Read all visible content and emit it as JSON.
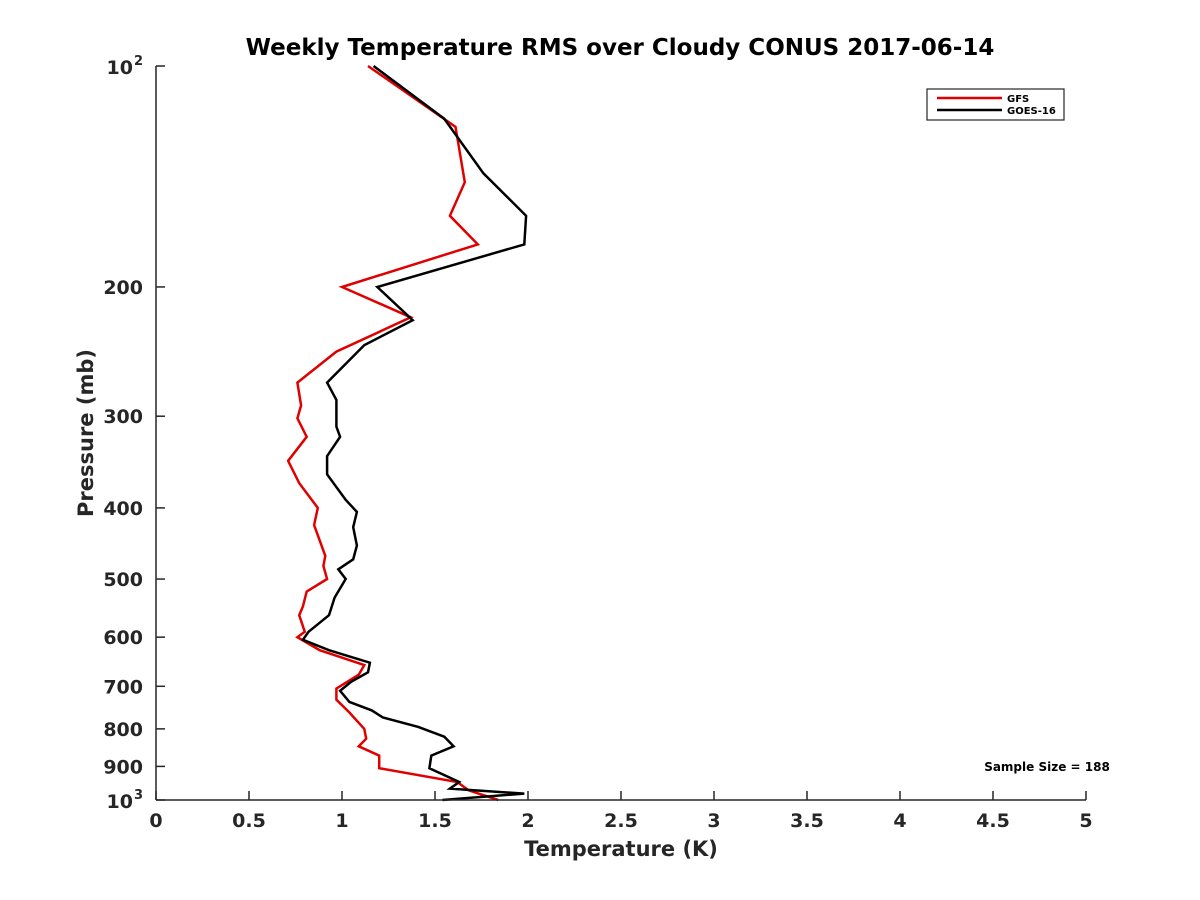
{
  "chart_data": {
    "type": "line",
    "title": "Weekly Temperature RMS over Cloudy CONUS 2017-06-14",
    "xlabel": "Temperature (K)",
    "ylabel": "Pressure (mb)",
    "xlim": [
      0,
      5
    ],
    "ylim": [
      100,
      1000
    ],
    "y_scale": "log",
    "y_reversed": true,
    "grid": false,
    "legend_position": "top-right",
    "x_ticks": [
      0,
      0.5,
      1,
      1.5,
      2,
      2.5,
      3,
      3.5,
      4,
      4.5,
      5
    ],
    "x_tick_labels": [
      "0",
      "0.5",
      "1",
      "1.5",
      "2",
      "2.5",
      "3",
      "3.5",
      "4",
      "4.5",
      "5"
    ],
    "y_ticks": [
      {
        "value": 100,
        "label": "10",
        "sup": "2"
      },
      {
        "value": 200,
        "label": "200",
        "sup": ""
      },
      {
        "value": 300,
        "label": "300",
        "sup": ""
      },
      {
        "value": 400,
        "label": "400",
        "sup": ""
      },
      {
        "value": 500,
        "label": "500",
        "sup": ""
      },
      {
        "value": 600,
        "label": "600",
        "sup": ""
      },
      {
        "value": 700,
        "label": "700",
        "sup": ""
      },
      {
        "value": 800,
        "label": "800",
        "sup": ""
      },
      {
        "value": 900,
        "label": "900",
        "sup": ""
      },
      {
        "value": 1000,
        "label": "10",
        "sup": "3"
      }
    ],
    "series": [
      {
        "name": "GFS",
        "color": "#e00000",
        "points": [
          {
            "x": 1.14,
            "y": 100
          },
          {
            "x": 1.61,
            "y": 121
          },
          {
            "x": 1.66,
            "y": 144
          },
          {
            "x": 1.58,
            "y": 160
          },
          {
            "x": 1.73,
            "y": 175
          },
          {
            "x": 1.0,
            "y": 200
          },
          {
            "x": 1.37,
            "y": 220
          },
          {
            "x": 0.97,
            "y": 245
          },
          {
            "x": 0.76,
            "y": 270
          },
          {
            "x": 0.78,
            "y": 290
          },
          {
            "x": 0.76,
            "y": 302
          },
          {
            "x": 0.81,
            "y": 320
          },
          {
            "x": 0.71,
            "y": 345
          },
          {
            "x": 0.77,
            "y": 370
          },
          {
            "x": 0.87,
            "y": 400
          },
          {
            "x": 0.85,
            "y": 422
          },
          {
            "x": 0.91,
            "y": 465
          },
          {
            "x": 0.9,
            "y": 480
          },
          {
            "x": 0.92,
            "y": 500
          },
          {
            "x": 0.81,
            "y": 520
          },
          {
            "x": 0.79,
            "y": 545
          },
          {
            "x": 0.77,
            "y": 560
          },
          {
            "x": 0.8,
            "y": 590
          },
          {
            "x": 0.76,
            "y": 600
          },
          {
            "x": 0.88,
            "y": 625
          },
          {
            "x": 1.12,
            "y": 655
          },
          {
            "x": 1.09,
            "y": 675
          },
          {
            "x": 0.97,
            "y": 705
          },
          {
            "x": 0.97,
            "y": 730
          },
          {
            "x": 1.04,
            "y": 760
          },
          {
            "x": 1.12,
            "y": 800
          },
          {
            "x": 1.13,
            "y": 825
          },
          {
            "x": 1.09,
            "y": 845
          },
          {
            "x": 1.2,
            "y": 870
          },
          {
            "x": 1.2,
            "y": 905
          },
          {
            "x": 1.62,
            "y": 945
          },
          {
            "x": 1.68,
            "y": 970
          },
          {
            "x": 1.84,
            "y": 1000
          }
        ]
      },
      {
        "name": "GOES-16",
        "color": "#000000",
        "points": [
          {
            "x": 1.17,
            "y": 100
          },
          {
            "x": 1.55,
            "y": 118
          },
          {
            "x": 1.76,
            "y": 140
          },
          {
            "x": 1.99,
            "y": 160
          },
          {
            "x": 1.98,
            "y": 175
          },
          {
            "x": 1.19,
            "y": 200
          },
          {
            "x": 1.38,
            "y": 222
          },
          {
            "x": 1.12,
            "y": 240
          },
          {
            "x": 0.92,
            "y": 270
          },
          {
            "x": 0.97,
            "y": 285
          },
          {
            "x": 0.97,
            "y": 310
          },
          {
            "x": 0.99,
            "y": 320
          },
          {
            "x": 0.92,
            "y": 340
          },
          {
            "x": 0.92,
            "y": 360
          },
          {
            "x": 1.02,
            "y": 390
          },
          {
            "x": 1.08,
            "y": 405
          },
          {
            "x": 1.06,
            "y": 425
          },
          {
            "x": 1.08,
            "y": 450
          },
          {
            "x": 1.06,
            "y": 470
          },
          {
            "x": 0.98,
            "y": 485
          },
          {
            "x": 1.02,
            "y": 500
          },
          {
            "x": 0.96,
            "y": 530
          },
          {
            "x": 0.93,
            "y": 560
          },
          {
            "x": 0.82,
            "y": 590
          },
          {
            "x": 0.79,
            "y": 605
          },
          {
            "x": 0.93,
            "y": 625
          },
          {
            "x": 1.15,
            "y": 650
          },
          {
            "x": 1.14,
            "y": 670
          },
          {
            "x": 1.05,
            "y": 690
          },
          {
            "x": 0.99,
            "y": 710
          },
          {
            "x": 1.04,
            "y": 735
          },
          {
            "x": 1.16,
            "y": 755
          },
          {
            "x": 1.22,
            "y": 772
          },
          {
            "x": 1.41,
            "y": 795
          },
          {
            "x": 1.55,
            "y": 820
          },
          {
            "x": 1.6,
            "y": 845
          },
          {
            "x": 1.48,
            "y": 870
          },
          {
            "x": 1.47,
            "y": 905
          },
          {
            "x": 1.63,
            "y": 945
          },
          {
            "x": 1.58,
            "y": 965
          },
          {
            "x": 1.98,
            "y": 980
          },
          {
            "x": 1.54,
            "y": 1000
          }
        ]
      }
    ],
    "annotations": [
      "Sample Size = 188"
    ]
  }
}
